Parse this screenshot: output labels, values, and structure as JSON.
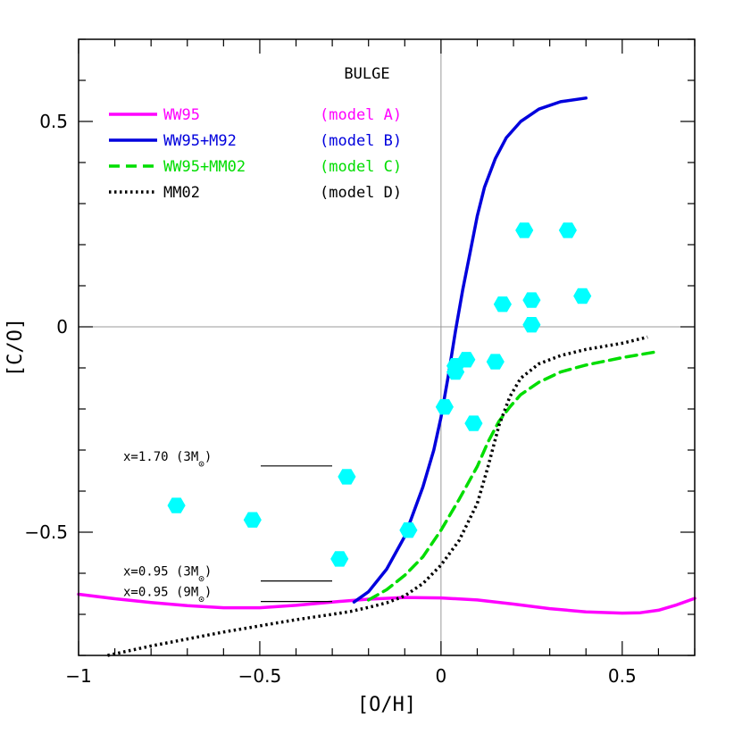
{
  "chart_data": {
    "type": "line",
    "title": "BULGE",
    "xlabel": "[O/H]",
    "ylabel": "[C/O]",
    "xlim": [
      -1.0,
      0.7
    ],
    "ylim": [
      -0.8,
      0.7
    ],
    "x_ticks": [
      -1,
      -0.5,
      0,
      0.5
    ],
    "x_tick_labels": [
      "−1",
      "−0.5",
      "0",
      "0.5"
    ],
    "y_ticks": [
      -0.5,
      0,
      0.5
    ],
    "y_tick_labels": [
      "−0.5",
      "0",
      "0.5"
    ],
    "reference_lines": {
      "x": 0,
      "y": 0
    },
    "series": [
      {
        "name": "WW95",
        "model": "(model A)",
        "color": "#ff00ff",
        "style": "solid",
        "x": [
          -1.0,
          -0.9,
          -0.8,
          -0.7,
          -0.6,
          -0.5,
          -0.4,
          -0.3,
          -0.2,
          -0.1,
          0.0,
          0.1,
          0.2,
          0.3,
          0.4,
          0.5,
          0.55,
          0.6,
          0.65,
          0.7
        ],
        "y": [
          -0.651,
          -0.662,
          -0.671,
          -0.679,
          -0.684,
          -0.684,
          -0.678,
          -0.67,
          -0.663,
          -0.659,
          -0.66,
          -0.665,
          -0.675,
          -0.686,
          -0.694,
          -0.697,
          -0.696,
          -0.69,
          -0.677,
          -0.661
        ]
      },
      {
        "name": "WW95+M92",
        "model": "(model B)",
        "color": "#0000dd",
        "style": "solid",
        "x": [
          -0.24,
          -0.2,
          -0.15,
          -0.1,
          -0.05,
          -0.02,
          0.0,
          0.02,
          0.04,
          0.06,
          0.08,
          0.1,
          0.12,
          0.15,
          0.18,
          0.22,
          0.27,
          0.33,
          0.4
        ],
        "y": [
          -0.67,
          -0.645,
          -0.59,
          -0.51,
          -0.39,
          -0.3,
          -0.22,
          -0.12,
          -0.01,
          0.09,
          0.18,
          0.27,
          0.34,
          0.41,
          0.46,
          0.5,
          0.53,
          0.548,
          0.557
        ]
      },
      {
        "name": "WW95+MM02",
        "model": "(model C)",
        "color": "#00dd00",
        "style": "dashed",
        "x": [
          -0.2,
          -0.15,
          -0.1,
          -0.05,
          0.0,
          0.05,
          0.1,
          0.13,
          0.16,
          0.19,
          0.22,
          0.27,
          0.33,
          0.4,
          0.5,
          0.6
        ],
        "y": [
          -0.665,
          -0.64,
          -0.605,
          -0.56,
          -0.495,
          -0.42,
          -0.34,
          -0.28,
          -0.23,
          -0.195,
          -0.165,
          -0.135,
          -0.11,
          -0.093,
          -0.075,
          -0.06
        ]
      },
      {
        "name": "MM02",
        "model": "(model D)",
        "color": "#000000",
        "style": "dotted",
        "x": [
          -0.92,
          -0.8,
          -0.7,
          -0.6,
          -0.5,
          -0.4,
          -0.3,
          -0.25,
          -0.2,
          -0.15,
          -0.1,
          -0.05,
          0.0,
          0.05,
          0.1,
          0.13,
          0.16,
          0.19,
          0.22,
          0.27,
          0.33,
          0.4,
          0.5,
          0.57
        ],
        "y": [
          -0.8,
          -0.777,
          -0.76,
          -0.743,
          -0.728,
          -0.713,
          -0.7,
          -0.693,
          -0.683,
          -0.672,
          -0.655,
          -0.625,
          -0.58,
          -0.52,
          -0.43,
          -0.34,
          -0.24,
          -0.17,
          -0.125,
          -0.09,
          -0.07,
          -0.055,
          -0.04,
          -0.025
        ]
      }
    ],
    "scatter": {
      "color": "#00ffff",
      "points": [
        [
          -0.73,
          -0.435
        ],
        [
          -0.52,
          -0.47
        ],
        [
          -0.26,
          -0.365
        ],
        [
          -0.28,
          -0.565
        ],
        [
          -0.09,
          -0.495
        ],
        [
          0.01,
          -0.195
        ],
        [
          0.04,
          -0.095
        ],
        [
          0.04,
          -0.11
        ],
        [
          0.07,
          -0.08
        ],
        [
          0.09,
          -0.235
        ],
        [
          0.15,
          -0.085
        ],
        [
          0.17,
          0.055
        ],
        [
          0.23,
          0.235
        ],
        [
          0.25,
          0.065
        ],
        [
          0.25,
          0.005
        ],
        [
          0.35,
          0.235
        ],
        [
          0.39,
          0.075
        ]
      ]
    },
    "annotations": [
      {
        "label": "x=1.70 (3M",
        "sub": "⊙",
        "close": ")",
        "y": -0.33
      },
      {
        "label": "x=0.95 (3M",
        "sub": "⊙",
        "close": ")",
        "y": -0.61
      },
      {
        "label": "x=0.95 (9M",
        "sub": "⊙",
        "close": ")",
        "y": -0.66
      }
    ],
    "grid": false,
    "legend_position": "top-left"
  }
}
